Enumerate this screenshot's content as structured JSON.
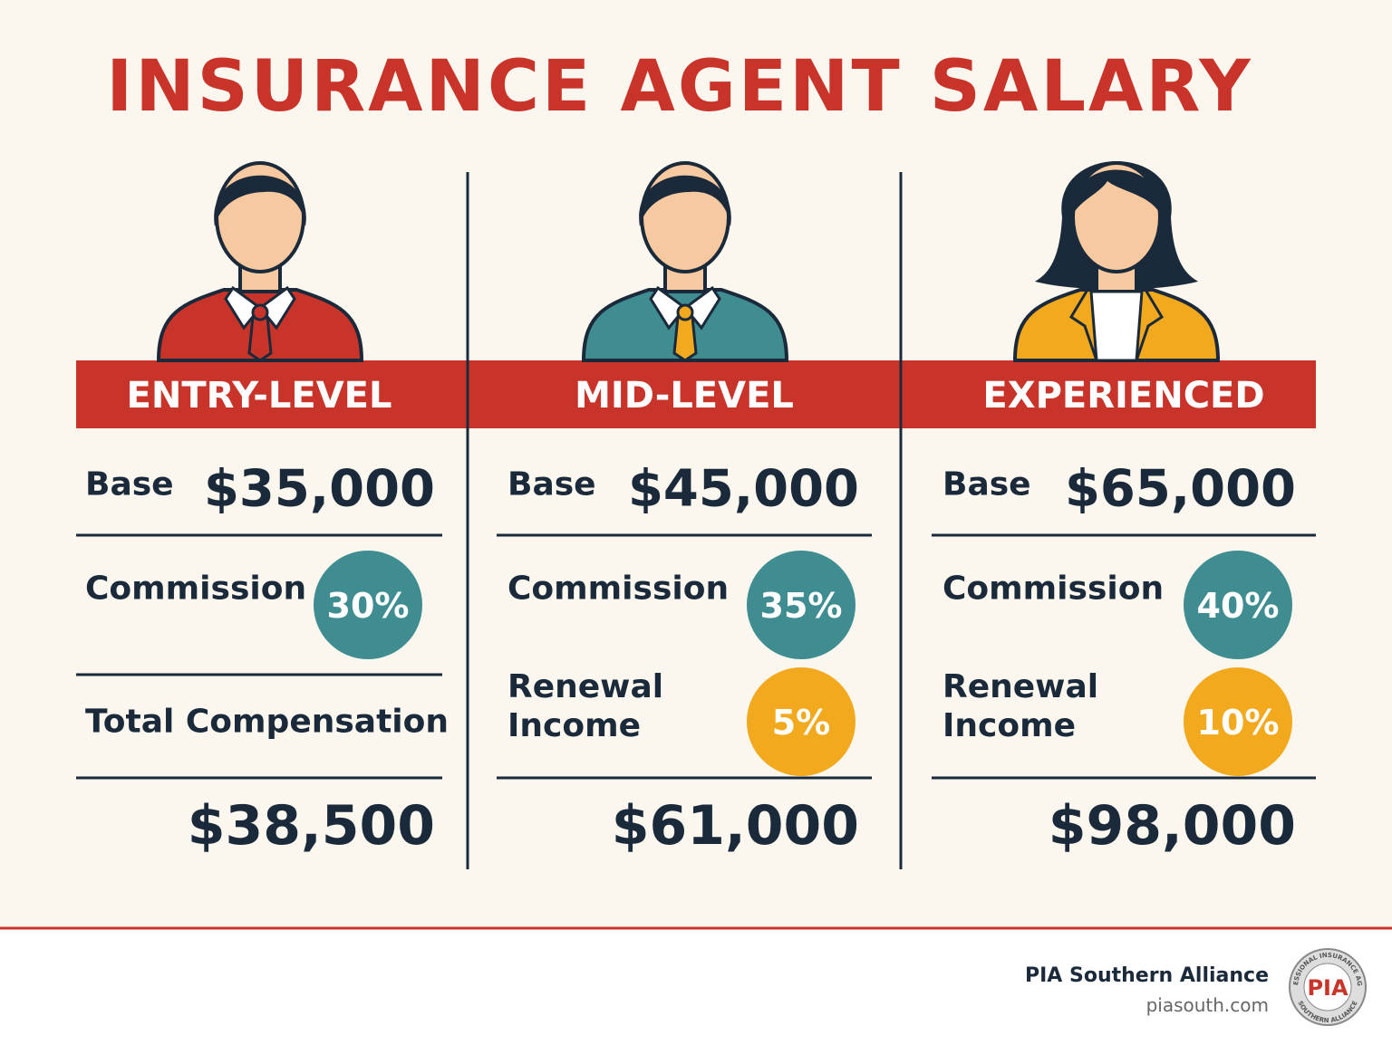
{
  "title": "INSURANCE AGENT SALARY",
  "columns": [
    {
      "level": "ENTRY-LEVEL",
      "base_label": "Base",
      "base": "$35,000",
      "commission_label": "Commission",
      "commission": "30%",
      "total_label": "Total Compensation",
      "total": "$38,500"
    },
    {
      "level": "MID-LEVEL",
      "base_label": "Base",
      "base": "$45,000",
      "commission_label": "Commission",
      "commission": "35%",
      "renewal_label": "Renewal Income",
      "renewal": "5%",
      "total": "$61,000"
    },
    {
      "level": "EXPERIENCED",
      "base_label": "Base",
      "base": "$65,000",
      "commission_label": "Commission",
      "commission": "40%",
      "renewal_label": "Renewal Income",
      "renewal": "10%",
      "total": "$98,000"
    }
  ],
  "footer": {
    "org": "PIA Southern Alliance",
    "url": "piasouth.com",
    "logo": {
      "mark": "PIA",
      "top": "PROFESSIONAL INSURANCE AGENTS",
      "bottom": "SOUTHERN ALLIANCE"
    }
  }
}
